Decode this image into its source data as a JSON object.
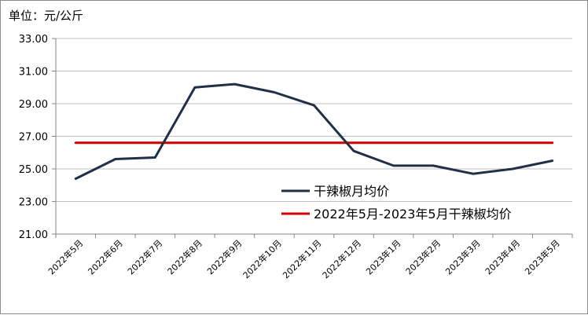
{
  "chart_data": {
    "type": "line",
    "unit_label": "单位：元/公斤",
    "categories": [
      "2022年5月",
      "2022年6月",
      "2022年7月",
      "2022年8月",
      "2022年9月",
      "2022年10月",
      "2022年11月",
      "2022年12月",
      "2023年1月",
      "2023年2月",
      "2023年3月",
      "2023年4月",
      "2023年5月"
    ],
    "ylim": [
      21.0,
      33.0
    ],
    "yticks": [
      "21.00",
      "23.00",
      "25.00",
      "27.00",
      "29.00",
      "31.00",
      "33.00"
    ],
    "grid": true,
    "legend_position": "bottom-right",
    "series": [
      {
        "name": "干辣椒月均价",
        "color": "#1f3047",
        "values": [
          24.4,
          25.6,
          25.7,
          30.0,
          30.2,
          29.7,
          28.9,
          26.1,
          25.2,
          25.2,
          24.7,
          25.0,
          25.5
        ]
      },
      {
        "name": "2022年5月-2023年5月干辣椒均价",
        "color": "#d40000",
        "values": [
          26.6,
          26.6,
          26.6,
          26.6,
          26.6,
          26.6,
          26.6,
          26.6,
          26.6,
          26.6,
          26.6,
          26.6,
          26.6
        ]
      }
    ]
  }
}
